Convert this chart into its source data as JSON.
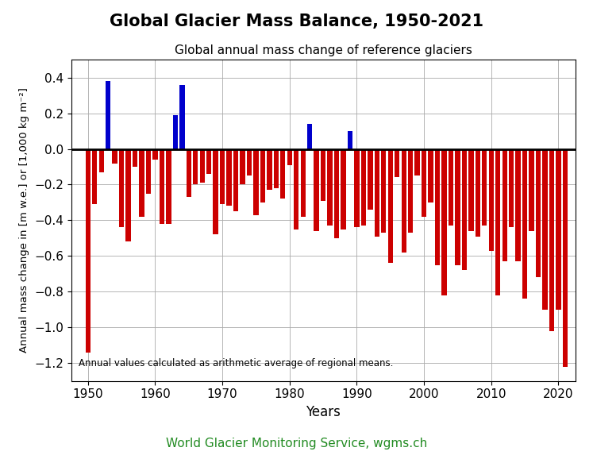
{
  "title": "Global Glacier Mass Balance, 1950-2021",
  "subtitle": "Global annual mass change of reference glaciers",
  "xlabel": "Years",
  "ylabel": "Annual mass change in [m w.e.] or [1,000 kg m⁻²]",
  "annotation": "Annual values calculated as arithmetic average of regional means.",
  "source_text": "World Glacier Monitoring Service, wgms.ch",
  "source_color": "#228B22",
  "years": [
    1950,
    1951,
    1952,
    1953,
    1954,
    1955,
    1956,
    1957,
    1958,
    1959,
    1960,
    1961,
    1962,
    1963,
    1964,
    1965,
    1966,
    1967,
    1968,
    1969,
    1970,
    1971,
    1972,
    1973,
    1974,
    1975,
    1976,
    1977,
    1978,
    1979,
    1980,
    1981,
    1982,
    1983,
    1984,
    1985,
    1986,
    1987,
    1988,
    1989,
    1990,
    1991,
    1992,
    1993,
    1994,
    1995,
    1996,
    1997,
    1998,
    1999,
    2000,
    2001,
    2002,
    2003,
    2004,
    2005,
    2006,
    2007,
    2008,
    2009,
    2010,
    2011,
    2012,
    2013,
    2014,
    2015,
    2016,
    2017,
    2018,
    2019,
    2020,
    2021
  ],
  "values": [
    -1.14,
    -0.31,
    -0.13,
    0.38,
    -0.08,
    -0.44,
    -0.52,
    -0.1,
    -0.38,
    -0.25,
    -0.06,
    -0.42,
    -0.42,
    0.19,
    0.36,
    -0.27,
    -0.2,
    -0.19,
    -0.14,
    -0.48,
    -0.31,
    -0.32,
    -0.35,
    -0.2,
    -0.15,
    -0.37,
    -0.3,
    -0.23,
    -0.22,
    -0.28,
    -0.09,
    -0.45,
    -0.38,
    0.14,
    -0.46,
    -0.29,
    -0.43,
    -0.5,
    -0.45,
    0.1,
    -0.44,
    -0.43,
    -0.34,
    -0.49,
    -0.47,
    -0.64,
    -0.16,
    -0.58,
    -0.47,
    -0.15,
    -0.38,
    -0.3,
    -0.65,
    -0.82,
    -0.43,
    -0.65,
    -0.68,
    -0.46,
    -0.49,
    -0.43,
    -0.57,
    -0.82,
    -0.63,
    -0.44,
    -0.63,
    -0.84,
    -0.46,
    -0.72,
    -0.9,
    -1.02,
    -0.9,
    -1.22
  ],
  "ylim": [
    -1.3,
    0.5
  ],
  "yticks": [
    -1.2,
    -1.0,
    -0.8,
    -0.6,
    -0.4,
    -0.2,
    0.0,
    0.2,
    0.4
  ],
  "xticks": [
    1950,
    1960,
    1970,
    1980,
    1990,
    2000,
    2010,
    2020
  ],
  "xlim": [
    1947.5,
    2022.5
  ],
  "positive_color": "#0000CC",
  "negative_color": "#CC0000",
  "bar_width": 0.75,
  "figsize": [
    7.47,
    5.78
  ],
  "dpi": 100
}
